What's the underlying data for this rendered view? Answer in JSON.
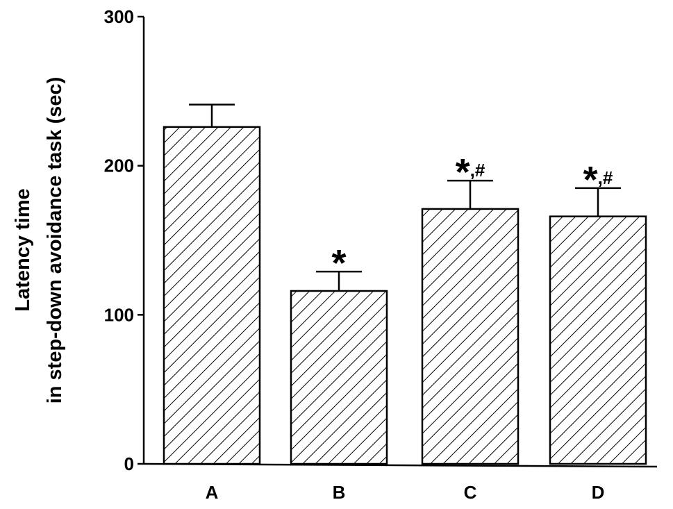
{
  "chart_data": {
    "type": "bar",
    "categories": [
      "A",
      "B",
      "C",
      "D"
    ],
    "values": [
      226,
      116,
      171,
      166
    ],
    "errors": [
      15,
      13,
      19,
      19
    ],
    "annotations": [
      "",
      "*",
      "*,#",
      "*,#"
    ],
    "title": "",
    "xlabel": "",
    "ylabel_lines": [
      "Latency time",
      "in step-down avoidance task (sec)"
    ],
    "ylim": [
      0,
      300
    ],
    "yticks": [
      0,
      100,
      200,
      300
    ],
    "grid": false,
    "bar_fill": "diagonal-hatch",
    "bar_color": "#ffffff",
    "line_color": "#000000"
  }
}
